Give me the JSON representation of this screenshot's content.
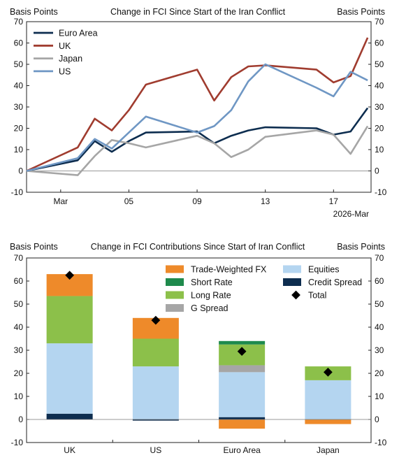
{
  "chart_data": [
    {
      "type": "line",
      "title": "Change in FCI Since Start of the Iran Conflict",
      "ylabel_left": "Basis Points",
      "ylabel_right": "Basis Points",
      "ylim": [
        -10,
        70
      ],
      "yticks": [
        -10,
        0,
        10,
        20,
        30,
        40,
        50,
        60,
        70
      ],
      "x_tick_labels": [
        "Mar",
        "05",
        "09",
        "13",
        "17"
      ],
      "x_tick_positions": [
        2,
        6,
        10,
        14,
        18
      ],
      "x_axis_note": "2026-Mar",
      "x_range": [
        0,
        20.2
      ],
      "grid": false,
      "zero_line": true,
      "legend_position": "top-left",
      "x": [
        0,
        3,
        4,
        5,
        6,
        7,
        10,
        11,
        12,
        13,
        14,
        17,
        18,
        19,
        20
      ],
      "series": [
        {
          "name": "Euro Area",
          "color": "#0d2d4f",
          "values": [
            0,
            5,
            14,
            9,
            14,
            18,
            18.5,
            13,
            16.5,
            19,
            20.5,
            20,
            17,
            18.5,
            29.5
          ]
        },
        {
          "name": "UK",
          "color": "#a03c2f",
          "values": [
            0,
            11,
            24.5,
            19,
            28.5,
            40.5,
            47.5,
            33,
            44,
            49,
            49.5,
            47.5,
            41.5,
            44.5,
            62.5
          ]
        },
        {
          "name": "Japan",
          "color": "#a6a6a6",
          "values": [
            0,
            -2,
            7,
            14.5,
            13,
            11,
            16.5,
            13,
            6.5,
            10,
            16,
            19,
            17,
            8,
            21
          ]
        },
        {
          "name": "US",
          "color": "#6f97c4",
          "values": [
            0,
            6,
            15,
            10.5,
            18,
            25.5,
            18,
            21,
            28.5,
            42,
            50,
            39,
            35,
            46.5,
            42.5
          ]
        }
      ]
    },
    {
      "type": "bar",
      "stacked": true,
      "title": "Change in FCI Contributions Since Start of Iran Conflict",
      "ylabel_left": "Basis Points",
      "ylabel_right": "Basis Points",
      "ylim": [
        -10,
        70
      ],
      "yticks": [
        -10,
        0,
        10,
        20,
        30,
        40,
        50,
        60,
        70
      ],
      "categories": [
        "UK",
        "US",
        "Euro Area",
        "Japan"
      ],
      "legend_position": "top-right",
      "series": [
        {
          "name": "Credit Spread",
          "color": "#0d2d4f",
          "values": [
            2.5,
            -0.5,
            1,
            0
          ]
        },
        {
          "name": "Equities",
          "color": "#b4d5f0",
          "values": [
            30.5,
            23,
            19.5,
            17
          ]
        },
        {
          "name": "G Spread",
          "color": "#a6a6a6",
          "values": [
            0,
            0,
            3,
            0
          ]
        },
        {
          "name": "Long Rate",
          "color": "#8cc04a",
          "values": [
            20.5,
            12,
            9,
            6
          ]
        },
        {
          "name": "Short Rate",
          "color": "#1e8a4c",
          "values": [
            0,
            0,
            1.5,
            0
          ]
        },
        {
          "name": "Trade-Weighted FX",
          "color": "#ee8a2a",
          "values": [
            9.5,
            9,
            -4,
            -2
          ]
        }
      ],
      "total": {
        "name": "Total",
        "color": "#000000",
        "values": [
          62.5,
          43,
          29.5,
          20.5
        ]
      },
      "legend_order": [
        "Trade-Weighted FX",
        "Equities",
        "Short Rate",
        "Credit Spread",
        "Long Rate",
        "Total",
        "G Spread"
      ]
    }
  ]
}
